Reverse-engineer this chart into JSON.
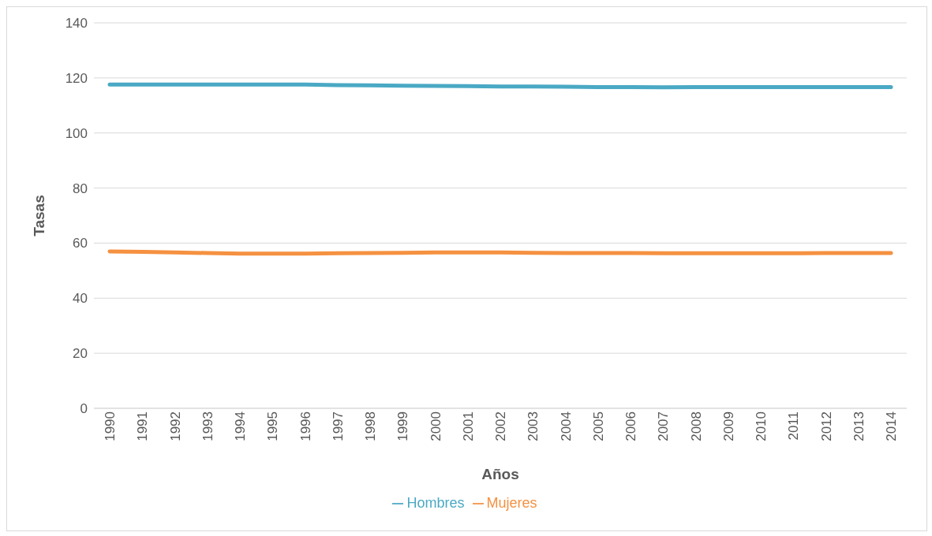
{
  "chart_data": {
    "type": "line",
    "xlabel": "Años",
    "ylabel": "Tasas",
    "categories": [
      "1990",
      "1991",
      "1992",
      "1993",
      "1994",
      "1995",
      "1996",
      "1997",
      "1998",
      "1999",
      "2000",
      "2001",
      "2002",
      "2003",
      "2004",
      "2005",
      "2006",
      "2007",
      "2008",
      "2009",
      "2010",
      "2011",
      "2012",
      "2013",
      "2014"
    ],
    "series": [
      {
        "name": "Mujeres",
        "color": "#f59141",
        "values": [
          57.0,
          56.8,
          56.6,
          56.4,
          56.2,
          56.2,
          56.2,
          56.3,
          56.4,
          56.5,
          56.6,
          56.6,
          56.6,
          56.5,
          56.4,
          56.4,
          56.4,
          56.3,
          56.3,
          56.3,
          56.3,
          56.3,
          56.4,
          56.4,
          56.4
        ]
      },
      {
        "name": "Hombres",
        "color": "#4aa9c4",
        "values": [
          117.6,
          117.6,
          117.6,
          117.6,
          117.6,
          117.6,
          117.6,
          117.4,
          117.3,
          117.2,
          117.1,
          117.0,
          116.9,
          116.9,
          116.8,
          116.7,
          116.7,
          116.6,
          116.7,
          116.7,
          116.7,
          116.7,
          116.7,
          116.7,
          116.7
        ]
      }
    ],
    "ylim": [
      0,
      140
    ],
    "yticks": [
      0,
      20,
      40,
      60,
      80,
      100,
      120,
      140
    ],
    "grid": "y",
    "legend": "bottom",
    "marker": "none",
    "line_style": "solid"
  }
}
